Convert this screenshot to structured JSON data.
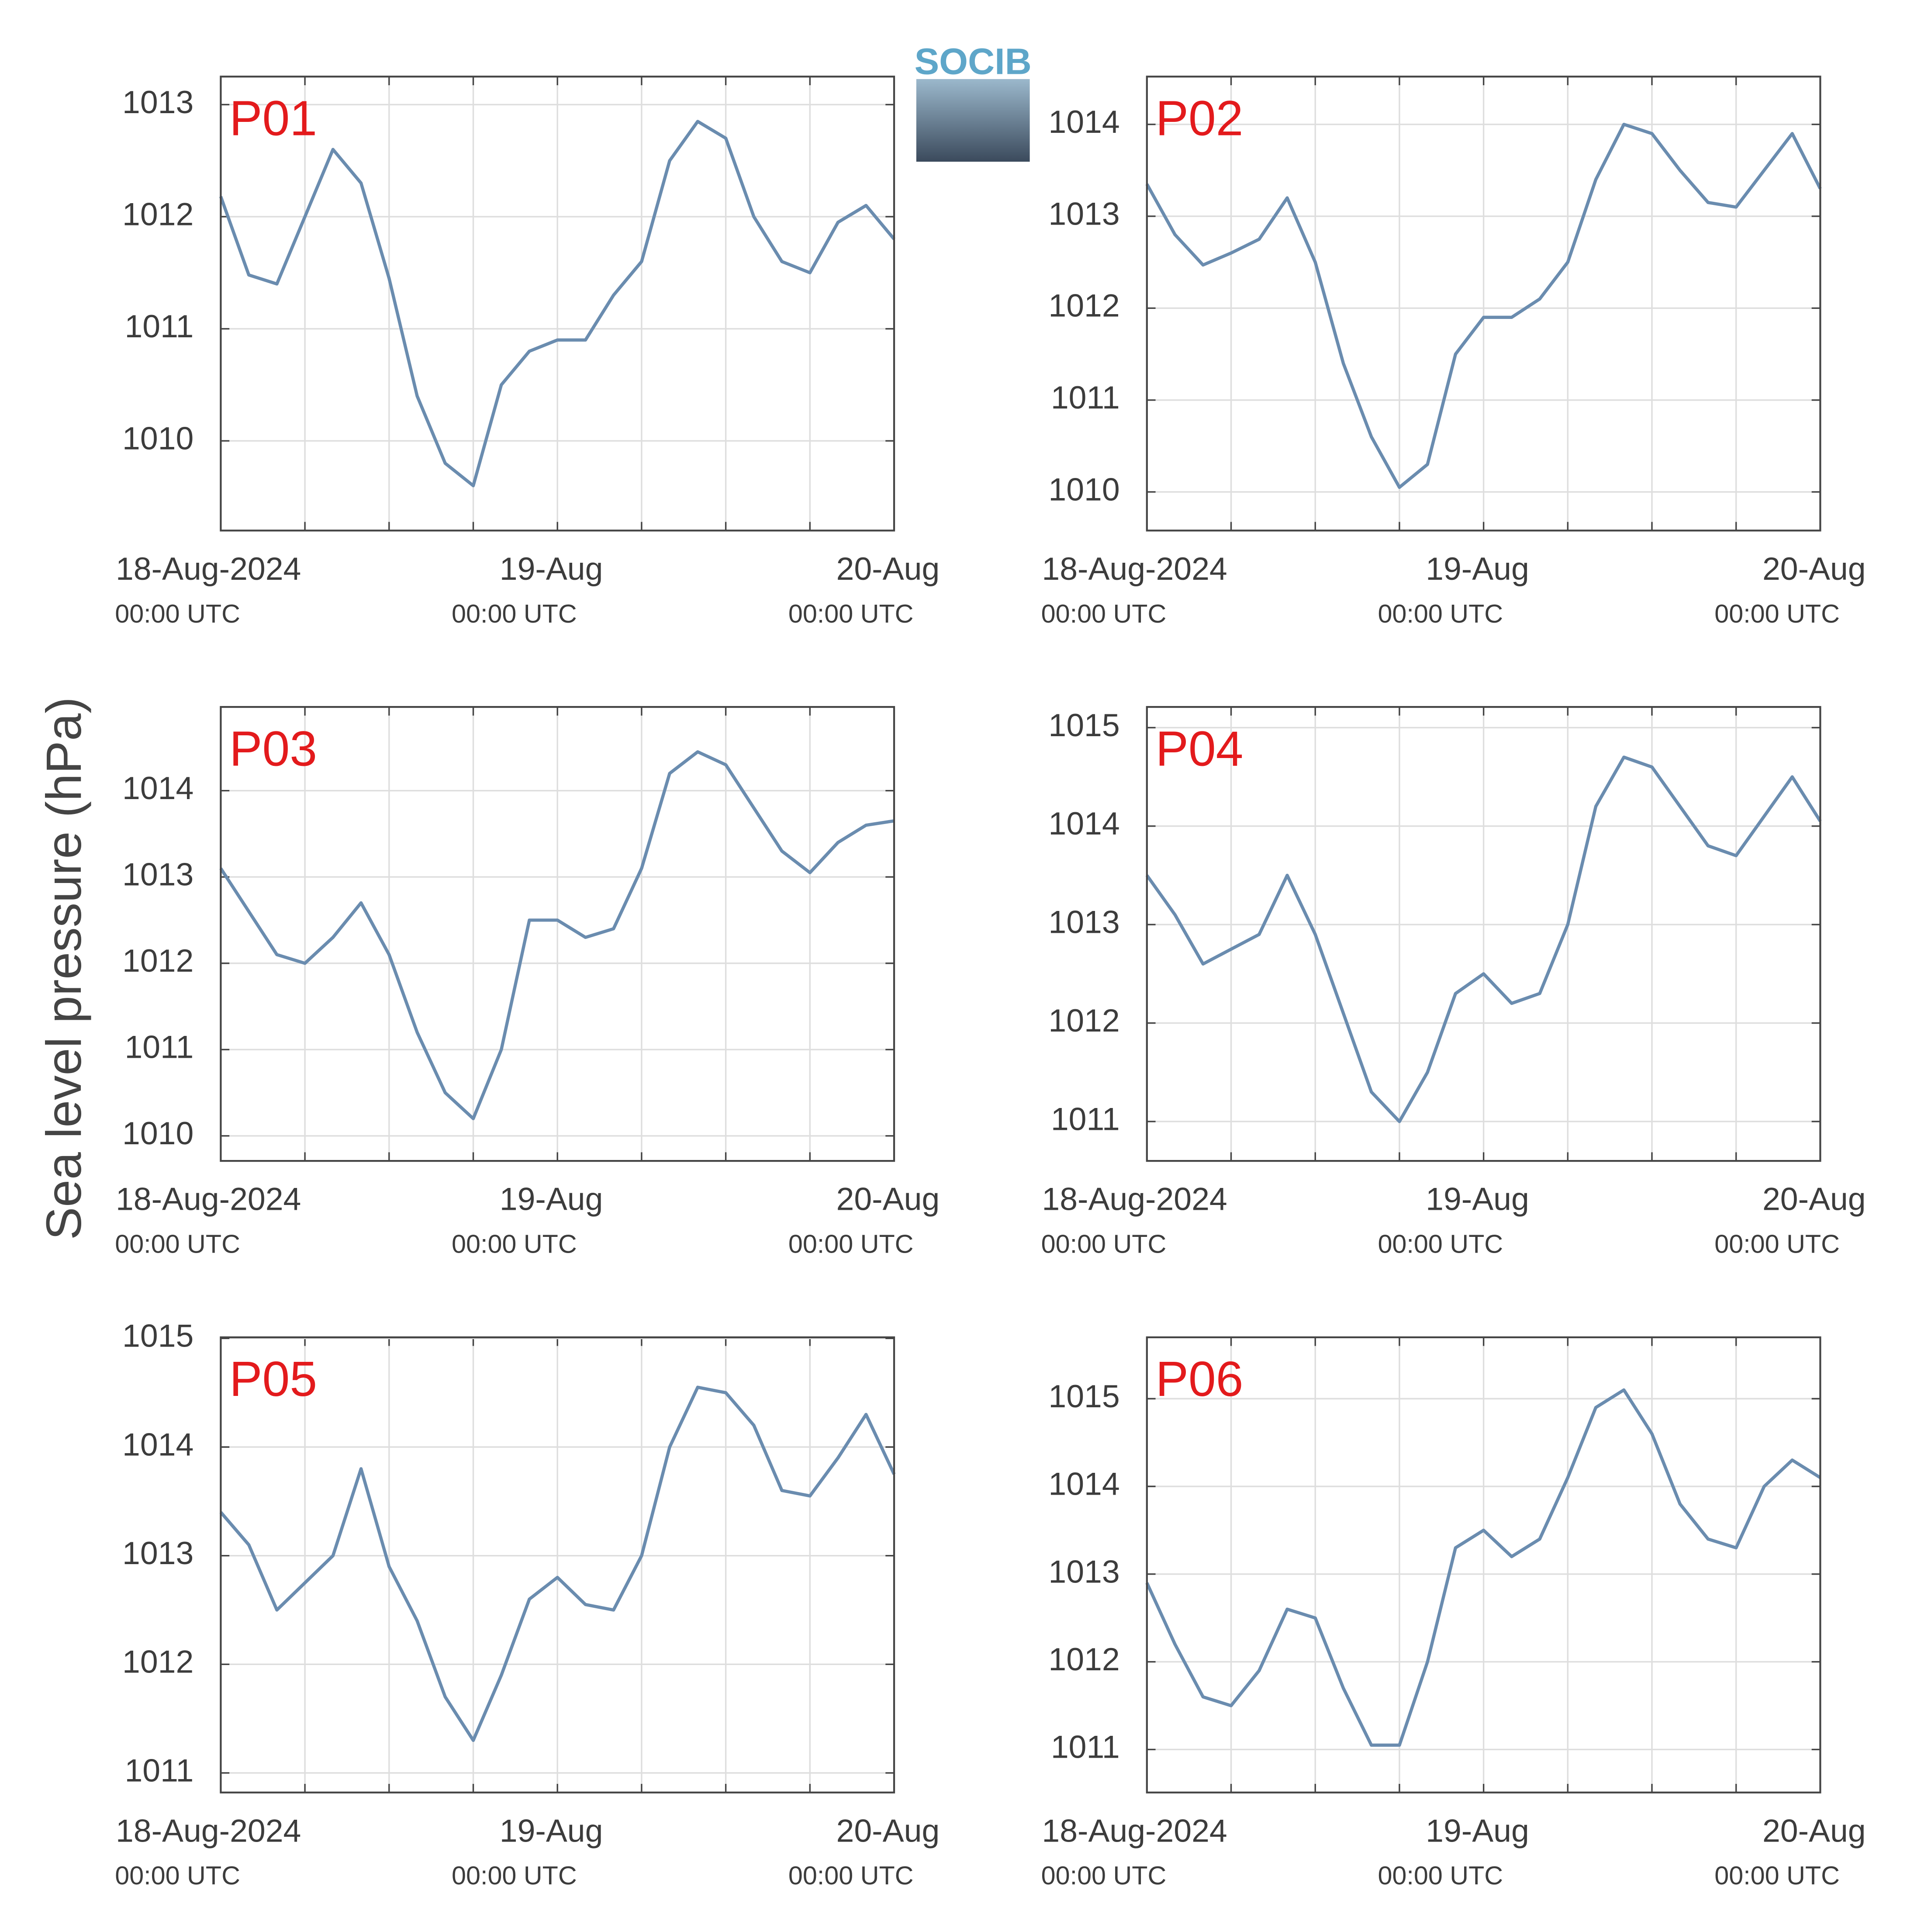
{
  "ylabel": "Sea level pressure (hPa)",
  "logo": "SOCIB",
  "chart_data": [
    {
      "type": "line",
      "title": "P01",
      "color": "#6a8caf",
      "grid": true,
      "x": [
        0,
        2,
        4,
        6,
        8,
        10,
        12,
        14,
        16,
        18,
        20,
        22,
        24,
        26,
        28,
        30,
        32,
        34,
        36,
        38,
        40,
        42,
        44,
        46,
        48
      ],
      "values": [
        1012.18,
        1011.48,
        1011.4,
        1012.0,
        1012.6,
        1012.3,
        1011.45,
        1010.4,
        1009.8,
        1009.6,
        1010.5,
        1010.8,
        1010.9,
        1010.9,
        1011.3,
        1011.6,
        1012.5,
        1012.85,
        1012.7,
        1012.0,
        1011.6,
        1011.5,
        1011.95,
        1012.1,
        1011.8
      ],
      "xlim": [
        0,
        48
      ],
      "ylim": [
        1009.2,
        1013.25
      ],
      "yticks": [
        1010,
        1011,
        1012,
        1013
      ],
      "xticks": [
        {
          "value": 0,
          "label": "18-Aug-2024",
          "sublabel": "00:00 UTC"
        },
        {
          "value": 6,
          "label": null
        },
        {
          "value": 12,
          "label": null
        },
        {
          "value": 18,
          "label": null
        },
        {
          "value": 24,
          "label": "19-Aug",
          "sublabel": "00:00 UTC"
        },
        {
          "value": 30,
          "label": null
        },
        {
          "value": 36,
          "label": null
        },
        {
          "value": 42,
          "label": null
        },
        {
          "value": 48,
          "label": "20-Aug",
          "sublabel": "00:00 UTC"
        }
      ]
    },
    {
      "type": "line",
      "title": "P02",
      "color": "#6a8caf",
      "grid": true,
      "x": [
        0,
        2,
        4,
        6,
        8,
        10,
        12,
        14,
        16,
        18,
        20,
        22,
        24,
        26,
        28,
        30,
        32,
        34,
        36,
        38,
        40,
        42,
        44,
        46,
        48
      ],
      "values": [
        1013.35,
        1012.8,
        1012.47,
        1012.6,
        1012.75,
        1013.2,
        1012.5,
        1011.4,
        1010.6,
        1010.05,
        1010.3,
        1011.5,
        1011.9,
        1011.9,
        1012.1,
        1012.5,
        1013.4,
        1014.0,
        1013.9,
        1013.5,
        1013.15,
        1013.1,
        1013.5,
        1013.9,
        1013.3
      ],
      "xlim": [
        0,
        48
      ],
      "ylim": [
        1009.58,
        1014.52
      ],
      "yticks": [
        1010,
        1011,
        1012,
        1013,
        1014
      ],
      "xticks": [
        {
          "value": 0,
          "label": "18-Aug-2024",
          "sublabel": "00:00 UTC"
        },
        {
          "value": 6,
          "label": null
        },
        {
          "value": 12,
          "label": null
        },
        {
          "value": 18,
          "label": null
        },
        {
          "value": 24,
          "label": "19-Aug",
          "sublabel": "00:00 UTC"
        },
        {
          "value": 30,
          "label": null
        },
        {
          "value": 36,
          "label": null
        },
        {
          "value": 42,
          "label": null
        },
        {
          "value": 48,
          "label": "20-Aug",
          "sublabel": "00:00 UTC"
        }
      ]
    },
    {
      "type": "line",
      "title": "P03",
      "color": "#6a8caf",
      "grid": true,
      "x": [
        0,
        2,
        4,
        6,
        8,
        10,
        12,
        14,
        16,
        18,
        20,
        22,
        24,
        26,
        28,
        30,
        32,
        34,
        36,
        38,
        40,
        42,
        44,
        46,
        48
      ],
      "values": [
        1013.1,
        1012.6,
        1012.1,
        1012.0,
        1012.3,
        1012.7,
        1012.1,
        1011.2,
        1010.5,
        1010.2,
        1011.0,
        1012.5,
        1012.5,
        1012.3,
        1012.4,
        1013.1,
        1014.2,
        1014.45,
        1014.3,
        1013.8,
        1013.3,
        1013.05,
        1013.4,
        1013.6,
        1013.65
      ],
      "xlim": [
        0,
        48
      ],
      "ylim": [
        1009.71,
        1014.97
      ],
      "yticks": [
        1010,
        1011,
        1012,
        1013,
        1014
      ],
      "xticks": [
        {
          "value": 0,
          "label": "18-Aug-2024",
          "sublabel": "00:00 UTC"
        },
        {
          "value": 6,
          "label": null
        },
        {
          "value": 12,
          "label": null
        },
        {
          "value": 18,
          "label": null
        },
        {
          "value": 24,
          "label": "19-Aug",
          "sublabel": "00:00 UTC"
        },
        {
          "value": 30,
          "label": null
        },
        {
          "value": 36,
          "label": null
        },
        {
          "value": 42,
          "label": null
        },
        {
          "value": 48,
          "label": "20-Aug",
          "sublabel": "00:00 UTC"
        }
      ]
    },
    {
      "type": "line",
      "title": "P04",
      "color": "#6a8caf",
      "grid": true,
      "x": [
        0,
        2,
        4,
        6,
        8,
        10,
        12,
        14,
        16,
        18,
        20,
        22,
        24,
        26,
        28,
        30,
        32,
        34,
        36,
        38,
        40,
        42,
        44,
        46,
        48
      ],
      "values": [
        1013.5,
        1013.1,
        1012.6,
        1012.75,
        1012.9,
        1013.5,
        1012.9,
        1012.1,
        1011.3,
        1011.0,
        1011.5,
        1012.3,
        1012.5,
        1012.2,
        1012.3,
        1013.0,
        1014.2,
        1014.7,
        1014.6,
        1014.2,
        1013.8,
        1013.7,
        1014.1,
        1014.5,
        1014.05
      ],
      "xlim": [
        0,
        48
      ],
      "ylim": [
        1010.6,
        1015.21
      ],
      "yticks": [
        1011,
        1012,
        1013,
        1014,
        1015
      ],
      "xticks": [
        {
          "value": 0,
          "label": "18-Aug-2024",
          "sublabel": "00:00 UTC"
        },
        {
          "value": 6,
          "label": null
        },
        {
          "value": 12,
          "label": null
        },
        {
          "value": 18,
          "label": null
        },
        {
          "value": 24,
          "label": "19-Aug",
          "sublabel": "00:00 UTC"
        },
        {
          "value": 30,
          "label": null
        },
        {
          "value": 36,
          "label": null
        },
        {
          "value": 42,
          "label": null
        },
        {
          "value": 48,
          "label": "20-Aug",
          "sublabel": "00:00 UTC"
        }
      ]
    },
    {
      "type": "line",
      "title": "P05",
      "color": "#6a8caf",
      "grid": true,
      "x": [
        0,
        2,
        4,
        6,
        8,
        10,
        12,
        14,
        16,
        18,
        20,
        22,
        24,
        26,
        28,
        30,
        32,
        34,
        36,
        38,
        40,
        42,
        44,
        46,
        48
      ],
      "values": [
        1013.4,
        1013.1,
        1012.5,
        1012.75,
        1013.0,
        1013.8,
        1012.9,
        1012.4,
        1011.7,
        1011.3,
        1011.9,
        1012.6,
        1012.8,
        1012.55,
        1012.5,
        1013.0,
        1014.0,
        1014.55,
        1014.5,
        1014.2,
        1013.6,
        1013.55,
        1013.9,
        1014.3,
        1013.75
      ],
      "xlim": [
        0,
        48
      ],
      "ylim": [
        1010.82,
        1015.01
      ],
      "yticks": [
        1011,
        1012,
        1013,
        1014,
        1015
      ],
      "xticks": [
        {
          "value": 0,
          "label": "18-Aug-2024",
          "sublabel": "00:00 UTC"
        },
        {
          "value": 6,
          "label": null
        },
        {
          "value": 12,
          "label": null
        },
        {
          "value": 18,
          "label": null
        },
        {
          "value": 24,
          "label": "19-Aug",
          "sublabel": "00:00 UTC"
        },
        {
          "value": 30,
          "label": null
        },
        {
          "value": 36,
          "label": null
        },
        {
          "value": 42,
          "label": null
        },
        {
          "value": 48,
          "label": "20-Aug",
          "sublabel": "00:00 UTC"
        }
      ]
    },
    {
      "type": "line",
      "title": "P06",
      "color": "#6a8caf",
      "grid": true,
      "x": [
        0,
        2,
        4,
        6,
        8,
        10,
        12,
        14,
        16,
        18,
        20,
        22,
        24,
        26,
        28,
        30,
        32,
        34,
        36,
        38,
        40,
        42,
        44,
        46,
        48
      ],
      "values": [
        1012.9,
        1012.2,
        1011.6,
        1011.5,
        1011.9,
        1012.6,
        1012.5,
        1011.7,
        1011.05,
        1011.05,
        1012.0,
        1013.3,
        1013.5,
        1013.2,
        1013.4,
        1014.1,
        1014.9,
        1015.1,
        1014.6,
        1013.8,
        1013.4,
        1013.3,
        1014.0,
        1014.3,
        1014.1
      ],
      "xlim": [
        0,
        48
      ],
      "ylim": [
        1010.51,
        1015.7
      ],
      "yticks": [
        1011,
        1012,
        1013,
        1014,
        1015
      ],
      "xticks": [
        {
          "value": 0,
          "label": "18-Aug-2024",
          "sublabel": "00:00 UTC"
        },
        {
          "value": 6,
          "label": null
        },
        {
          "value": 12,
          "label": null
        },
        {
          "value": 18,
          "label": null
        },
        {
          "value": 24,
          "label": "19-Aug",
          "sublabel": "00:00 UTC"
        },
        {
          "value": 30,
          "label": null
        },
        {
          "value": 36,
          "label": null
        },
        {
          "value": 42,
          "label": null
        },
        {
          "value": 48,
          "label": "20-Aug",
          "sublabel": "00:00 UTC"
        }
      ]
    }
  ]
}
